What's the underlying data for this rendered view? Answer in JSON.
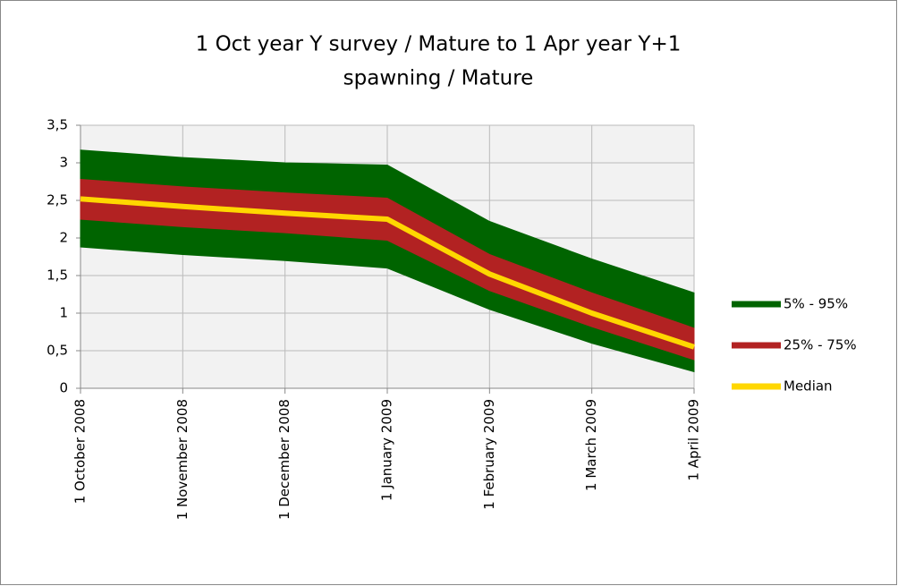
{
  "chart_data": {
    "type": "range",
    "title": [
      "1 Oct year Y survey / Mature to 1 Apr year Y+1",
      "spawning / Mature"
    ],
    "categories": [
      "1 October 2008",
      "1 November  2008",
      "1 December 2008",
      "1 January 2009",
      "1 February 2009",
      "1 March 2009",
      "1 April 2009"
    ],
    "series": [
      {
        "name": "5% - 95%",
        "color": "#006400",
        "high": [
          3.17,
          3.07,
          3.0,
          2.97,
          2.22,
          1.72,
          1.27
        ],
        "low": [
          1.88,
          1.78,
          1.7,
          1.6,
          1.05,
          0.6,
          0.22
        ]
      },
      {
        "name": "25% - 75%",
        "color": "#b22222",
        "high": [
          2.78,
          2.68,
          2.6,
          2.53,
          1.78,
          1.27,
          0.8
        ],
        "low": [
          2.25,
          2.15,
          2.07,
          1.97,
          1.3,
          0.82,
          0.38
        ]
      },
      {
        "name": "Median",
        "color": "#ffd700",
        "values": [
          2.52,
          2.42,
          2.33,
          2.25,
          1.52,
          1.0,
          0.55
        ]
      }
    ],
    "ylim": [
      0,
      3.5
    ],
    "yticks": [
      0,
      {
        "value": 0.5,
        "label": "0,5"
      },
      1,
      {
        "value": 1.5,
        "label": "1,5"
      },
      2,
      {
        "value": 2.5,
        "label": "2,5"
      },
      3,
      {
        "value": 3.5,
        "label": "3,5"
      }
    ],
    "grid": true,
    "legend": "right"
  }
}
